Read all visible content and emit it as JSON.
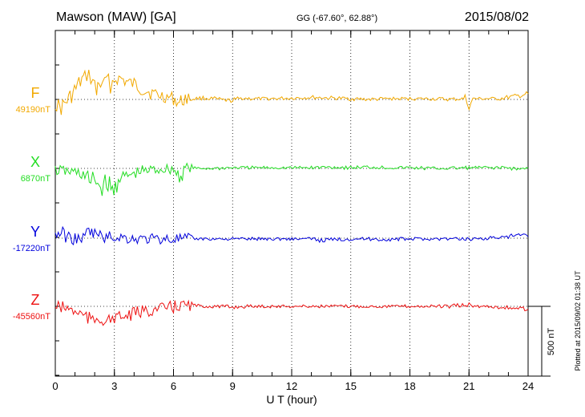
{
  "header": {
    "station": "Mawson (MAW)  [GA]",
    "coords": "GG (-67.60°,  62.88°)",
    "date": "2015/08/02"
  },
  "side_note": "Plotted at 2015/09/02 01:38 UT",
  "scale_label": "500 nT",
  "chart_data": {
    "type": "line",
    "title": "Mawson (MAW)  [GA]",
    "xlabel": "U T (hour)",
    "ylabel": "",
    "xlim": [
      0,
      24
    ],
    "x_ticks": [
      "0",
      "3",
      "6",
      "9",
      "12",
      "15",
      "18",
      "21",
      "24"
    ],
    "grid": true,
    "scale_bar_nT": 500,
    "series": [
      {
        "name": "F",
        "baseline_label": "49190nT",
        "color": "#f2a900",
        "points": [
          [
            0,
            -30
          ],
          [
            0.3,
            -60
          ],
          [
            0.6,
            -10
          ],
          [
            0.9,
            40
          ],
          [
            1.2,
            110
          ],
          [
            1.5,
            160
          ],
          [
            1.7,
            175
          ],
          [
            1.9,
            130
          ],
          [
            2.1,
            40
          ],
          [
            2.2,
            150
          ],
          [
            2.4,
            60
          ],
          [
            2.6,
            150
          ],
          [
            2.8,
            100
          ],
          [
            3.0,
            140
          ],
          [
            3.3,
            150
          ],
          [
            3.6,
            125
          ],
          [
            4.0,
            105
          ],
          [
            4.5,
            70
          ],
          [
            5.0,
            40
          ],
          [
            5.5,
            20
          ],
          [
            6.0,
            10
          ],
          [
            6.3,
            -30
          ],
          [
            6.6,
            10
          ],
          [
            7.0,
            5
          ],
          [
            7.5,
            10
          ],
          [
            8.0,
            5
          ],
          [
            8.5,
            -5
          ],
          [
            9.0,
            -10
          ],
          [
            9.5,
            10
          ],
          [
            10,
            5
          ],
          [
            11,
            5
          ],
          [
            12,
            10
          ],
          [
            13,
            15
          ],
          [
            14,
            10
          ],
          [
            15,
            5
          ],
          [
            16,
            0
          ],
          [
            17,
            5
          ],
          [
            18,
            5
          ],
          [
            19,
            5
          ],
          [
            20,
            0
          ],
          [
            20.8,
            5
          ],
          [
            21.0,
            -45
          ],
          [
            21.2,
            5
          ],
          [
            22,
            5
          ],
          [
            22.5,
            5
          ],
          [
            23,
            15
          ],
          [
            23.5,
            25
          ],
          [
            24,
            40
          ]
        ]
      },
      {
        "name": "X",
        "baseline_label": "6870nT",
        "color": "#22dd22",
        "points": [
          [
            0,
            -15
          ],
          [
            0.5,
            -20
          ],
          [
            1.0,
            -30
          ],
          [
            1.5,
            -45
          ],
          [
            1.8,
            -110
          ],
          [
            2.0,
            -60
          ],
          [
            2.3,
            -150
          ],
          [
            2.6,
            -90
          ],
          [
            2.9,
            -180
          ],
          [
            3.2,
            -70
          ],
          [
            3.6,
            -60
          ],
          [
            4.0,
            -40
          ],
          [
            4.5,
            -20
          ],
          [
            5.0,
            -10
          ],
          [
            5.5,
            -5
          ],
          [
            6.0,
            -5
          ],
          [
            6.3,
            -60
          ],
          [
            6.6,
            5
          ],
          [
            7.0,
            0
          ],
          [
            8,
            0
          ],
          [
            9,
            5
          ],
          [
            10,
            5
          ],
          [
            11,
            5
          ],
          [
            12,
            5
          ],
          [
            13,
            5
          ],
          [
            14,
            10
          ],
          [
            15,
            5
          ],
          [
            16,
            10
          ],
          [
            17,
            5
          ],
          [
            18,
            5
          ],
          [
            19,
            0
          ],
          [
            20,
            0
          ],
          [
            21,
            5
          ],
          [
            22,
            5
          ],
          [
            23,
            5
          ],
          [
            23.5,
            -5
          ],
          [
            24,
            0
          ]
        ]
      },
      {
        "name": "Y",
        "baseline_label": "-17220nT",
        "color": "#0000dd",
        "points": [
          [
            0,
            25
          ],
          [
            0.3,
            40
          ],
          [
            0.6,
            10
          ],
          [
            1.0,
            -5
          ],
          [
            1.5,
            0
          ],
          [
            1.7,
            45
          ],
          [
            2.0,
            35
          ],
          [
            2.2,
            20
          ],
          [
            2.5,
            5
          ],
          [
            3.0,
            10
          ],
          [
            3.5,
            5
          ],
          [
            4.0,
            -5
          ],
          [
            5.0,
            -5
          ],
          [
            6.0,
            -5
          ],
          [
            7.0,
            -5
          ],
          [
            8.0,
            -5
          ],
          [
            9.0,
            -5
          ],
          [
            10,
            -5
          ],
          [
            11,
            -5
          ],
          [
            12,
            -5
          ],
          [
            13,
            -5
          ],
          [
            13.5,
            -15
          ],
          [
            14,
            -10
          ],
          [
            15,
            -5
          ],
          [
            16,
            -5
          ],
          [
            16.5,
            -10
          ],
          [
            17,
            -10
          ],
          [
            18,
            -5
          ],
          [
            19,
            -5
          ],
          [
            20,
            -5
          ],
          [
            21,
            -5
          ],
          [
            22,
            0
          ],
          [
            22.5,
            5
          ],
          [
            23,
            5
          ],
          [
            23.3,
            20
          ],
          [
            23.6,
            25
          ],
          [
            24,
            10
          ]
        ]
      },
      {
        "name": "Z",
        "baseline_label": "-45560nT",
        "color": "#ee1111",
        "points": [
          [
            0,
            0
          ],
          [
            0.3,
            -5
          ],
          [
            0.6,
            -15
          ],
          [
            1.0,
            -35
          ],
          [
            1.5,
            -70
          ],
          [
            1.8,
            -100
          ],
          [
            2.0,
            -100
          ],
          [
            2.2,
            -90
          ],
          [
            2.5,
            -100
          ],
          [
            2.8,
            -100
          ],
          [
            3.0,
            -80
          ],
          [
            3.5,
            -75
          ],
          [
            4.0,
            -55
          ],
          [
            4.5,
            -35
          ],
          [
            5.0,
            -25
          ],
          [
            5.5,
            -15
          ],
          [
            6.0,
            -5
          ],
          [
            6.3,
            5
          ],
          [
            6.6,
            10
          ],
          [
            7.0,
            5
          ],
          [
            7.5,
            0
          ],
          [
            8,
            0
          ],
          [
            9,
            -5
          ],
          [
            10,
            0
          ],
          [
            11,
            0
          ],
          [
            12,
            0
          ],
          [
            13,
            0
          ],
          [
            14,
            0
          ],
          [
            15,
            0
          ],
          [
            16,
            0
          ],
          [
            17,
            0
          ],
          [
            18,
            0
          ],
          [
            19,
            0
          ],
          [
            20,
            0
          ],
          [
            21,
            10
          ],
          [
            21.2,
            0
          ],
          [
            22,
            0
          ],
          [
            22.5,
            -5
          ],
          [
            23,
            -10
          ],
          [
            23.5,
            -15
          ],
          [
            24,
            -20
          ]
        ]
      }
    ]
  }
}
